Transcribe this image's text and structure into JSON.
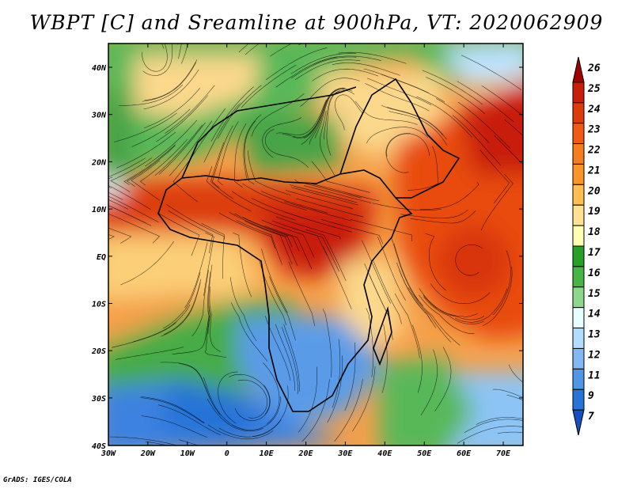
{
  "title": "WBPT [C] and Sreamline at 900hPa, VT: 2020062909",
  "credit": "GrADS: IGES/COLA",
  "map": {
    "lon_labels": [
      "30W",
      "20W",
      "10W",
      "0",
      "10E",
      "20E",
      "30E",
      "40E",
      "50E",
      "60E",
      "70E"
    ],
    "lat_labels": [
      "40N",
      "30N",
      "20N",
      "10N",
      "EQ",
      "10S",
      "20S",
      "30S",
      "40S"
    ],
    "lon_range": [
      -30,
      75
    ],
    "lat_range": [
      -40,
      45
    ]
  },
  "colorbar": {
    "labels": [
      "26",
      "25",
      "24",
      "23",
      "22",
      "21",
      "20",
      "19",
      "18",
      "17",
      "16",
      "15",
      "14",
      "13",
      "12",
      "11",
      "9",
      "7"
    ],
    "colors": [
      "#a00000",
      "#c81e0a",
      "#dc3c0a",
      "#f05a14",
      "#f57d1e",
      "#fa9628",
      "#ffbe50",
      "#ffe194",
      "#ffffb4",
      "#28a028",
      "#46b446",
      "#8cd78c",
      "#e6ffff",
      "#b4dcff",
      "#82b9f5",
      "#5096e6",
      "#2873d7",
      "#1450c3"
    ]
  }
}
